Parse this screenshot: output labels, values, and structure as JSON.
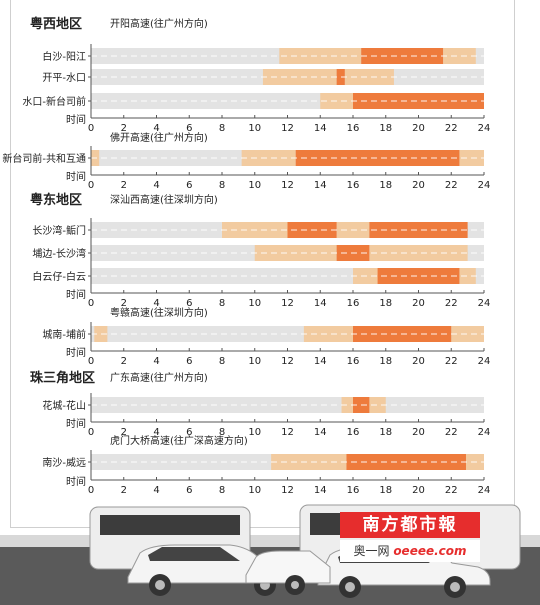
{
  "colors": {
    "clear": "#e3e3e3",
    "slow": "#f2cba0",
    "jam": "#ee7b3c",
    "region": "#222222",
    "axis": "#555555"
  },
  "chart_data": [
    {
      "type": "timeline",
      "region": "粤西地区",
      "highway": "开阳高速(往广州方向)",
      "xlabel": "时间",
      "xlim": [
        0,
        24
      ],
      "ticks": [
        "0",
        "2",
        "4",
        "6",
        "8",
        "10",
        "12",
        "14",
        "16",
        "18",
        "20",
        "22",
        "24"
      ],
      "rows": [
        {
          "label": "白沙-阳江",
          "slow": [
            [
              11.5,
              16.5
            ],
            [
              21.5,
              23.5
            ]
          ],
          "jam": [
            [
              16.5,
              21.5
            ]
          ]
        },
        {
          "label": "开平-水口",
          "slow": [
            [
              10.5,
              15.0
            ],
            [
              15.5,
              18.5
            ]
          ],
          "jam": [
            [
              15.0,
              15.5
            ]
          ]
        },
        {
          "label": "水口-新台司前",
          "slow": [
            [
              14.0,
              16.0
            ]
          ],
          "jam": [
            [
              16.0,
              24.0
            ]
          ]
        }
      ]
    },
    {
      "type": "timeline",
      "region": "",
      "highway": "佛开高速(往广州方向)",
      "xlabel": "时间",
      "xlim": [
        0,
        24
      ],
      "ticks": [
        "0",
        "2",
        "4",
        "6",
        "8",
        "10",
        "12",
        "14",
        "16",
        "18",
        "20",
        "22",
        "24"
      ],
      "rows": [
        {
          "label": "新台司前-共和互通",
          "slow": [
            [
              0,
              0.5
            ],
            [
              9.2,
              12.5
            ],
            [
              22.5,
              24.0
            ]
          ],
          "jam": [
            [
              12.5,
              22.5
            ]
          ]
        }
      ]
    },
    {
      "type": "timeline",
      "region": "粤东地区",
      "highway": "深汕西高速(往深圳方向)",
      "xlabel": "时间",
      "xlim": [
        0,
        24
      ],
      "ticks": [
        "0",
        "2",
        "4",
        "6",
        "8",
        "10",
        "12",
        "14",
        "16",
        "18",
        "20",
        "22",
        "24"
      ],
      "rows": [
        {
          "label": "长沙湾-鲘门",
          "slow": [
            [
              8.0,
              12.0
            ],
            [
              15.0,
              17.0
            ]
          ],
          "jam": [
            [
              12.0,
              15.0
            ],
            [
              17.0,
              23.0
            ]
          ]
        },
        {
          "label": "埔边-长沙湾",
          "slow": [
            [
              10.0,
              15.0
            ],
            [
              17.0,
              23.0
            ]
          ],
          "jam": [
            [
              15.0,
              17.0
            ]
          ]
        },
        {
          "label": "白云仔-白云",
          "slow": [
            [
              16.0,
              17.5
            ],
            [
              22.5,
              23.5
            ]
          ],
          "jam": [
            [
              17.5,
              22.5
            ]
          ]
        }
      ]
    },
    {
      "type": "timeline",
      "region": "",
      "highway": "粤赣高速(往深圳方向)",
      "xlabel": "时间",
      "xlim": [
        0,
        24
      ],
      "ticks": [
        "0",
        "2",
        "4",
        "6",
        "8",
        "10",
        "12",
        "14",
        "16",
        "18",
        "20",
        "22",
        "24"
      ],
      "rows": [
        {
          "label": "城南-埔前",
          "slow": [
            [
              0.2,
              1.0
            ],
            [
              13.0,
              16.0
            ],
            [
              22.0,
              24.0
            ]
          ],
          "jam": [
            [
              16.0,
              22.0
            ]
          ]
        }
      ]
    },
    {
      "type": "timeline",
      "region": "珠三角地区",
      "highway": "广东高速(往广州方向)",
      "xlabel": "时间",
      "xlim": [
        0,
        24
      ],
      "ticks": [
        "0",
        "2",
        "4",
        "6",
        "8",
        "10",
        "12",
        "14",
        "16",
        "18",
        "20",
        "22",
        "24"
      ],
      "rows": [
        {
          "label": "花城-花山",
          "slow": [
            [
              15.3,
              16.0
            ],
            [
              17.0,
              18.0
            ]
          ],
          "jam": [
            [
              16.0,
              17.0
            ]
          ]
        }
      ]
    },
    {
      "type": "timeline",
      "region": "",
      "highway": "虎门大桥高速(往广深高速方向)",
      "xlabel": "时间",
      "xlim": [
        0,
        24
      ],
      "ticks": [
        "0",
        "2",
        "4",
        "6",
        "8",
        "10",
        "12",
        "14",
        "16",
        "18",
        "20",
        "22",
        "24"
      ],
      "rows": [
        {
          "label": "南沙-威远",
          "slow": [
            [
              11.0,
              15.6
            ],
            [
              22.9,
              24.0
            ]
          ],
          "jam": [
            [
              15.6,
              22.9
            ]
          ]
        }
      ]
    }
  ],
  "logo": {
    "name": "南方都市報",
    "site_prefix": "奥一网",
    "site_domain": "oeeee.com"
  }
}
